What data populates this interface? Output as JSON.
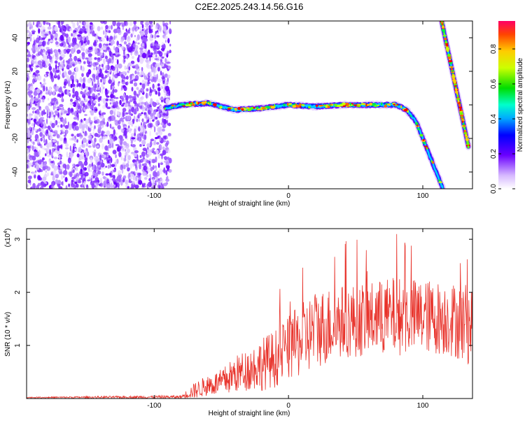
{
  "title": "C2E2.2025.243.14.56.G16",
  "colorbar": {
    "label": "Normalized spectral amplitude",
    "ticks": [
      "0.0",
      "0.2",
      "0.4",
      "0.6",
      "0.8"
    ],
    "tick_values": [
      0.0,
      0.2,
      0.4,
      0.6,
      0.8
    ],
    "range": [
      0,
      0.96
    ]
  },
  "chart_data": [
    {
      "type": "heatmap",
      "title": "C2E2.2025.243.14.56.G16",
      "xlabel": "Height of straight line (km)",
      "ylabel": "Frequency (Hz)",
      "xlim": [
        -195,
        137
      ],
      "ylim": [
        -50,
        50
      ],
      "xticks": [
        -100,
        0,
        100
      ],
      "xtick_labels": [
        "-100",
        "0",
        "100"
      ],
      "yticks": [
        -40,
        -20,
        0,
        20,
        40
      ],
      "ytick_labels": [
        "-40",
        "-20",
        "0",
        "20",
        "40"
      ],
      "noise_region_x": [
        -195,
        -88
      ],
      "main_track": {
        "x": [
          -92,
          -80,
          -60,
          -40,
          -20,
          0,
          20,
          40,
          60,
          80,
          88,
          95,
          100,
          105,
          110,
          115
        ],
        "y": [
          -2,
          0,
          1,
          -3,
          -2,
          0,
          -1,
          0,
          0,
          0,
          -3,
          -10,
          -20,
          -30,
          -40,
          -50
        ]
      },
      "upper_track": {
        "x": [
          114,
          118,
          122,
          126,
          130,
          134
        ],
        "y": [
          50,
          35,
          20,
          5,
          -10,
          -25
        ]
      }
    },
    {
      "type": "line",
      "xlabel": "Height of straight line (km)",
      "ylabel": "SNR (10 * v/v)",
      "y_multiplier": "(x10",
      "y_multiplier_exp": "4",
      "y_multiplier_close": ")",
      "xlim": [
        -195,
        137
      ],
      "ylim": [
        0,
        3.2
      ],
      "xticks": [
        -100,
        0,
        100
      ],
      "xtick_labels": [
        "-100",
        "0",
        "100"
      ],
      "yticks": [
        1,
        2,
        3
      ],
      "ytick_labels": [
        "1",
        "2",
        "3"
      ],
      "series": [
        {
          "name": "SNR",
          "color": "#e8332b",
          "envelope_x": [
            -195,
            -80,
            -70,
            -60,
            -50,
            -40,
            -30,
            -20,
            -10,
            0,
            10,
            20,
            40,
            60,
            80,
            100,
            120,
            137
          ],
          "envelope_mean": [
            0.02,
            0.03,
            0.15,
            0.25,
            0.3,
            0.45,
            0.55,
            0.65,
            0.75,
            0.95,
            1.1,
            1.3,
            1.45,
            1.5,
            1.55,
            1.55,
            1.5,
            1.4
          ],
          "envelope_amp": [
            0.01,
            0.03,
            0.15,
            0.2,
            0.25,
            0.35,
            0.4,
            0.5,
            0.55,
            0.6,
            0.7,
            0.75,
            0.7,
            0.7,
            0.75,
            0.7,
            0.7,
            0.8
          ]
        }
      ]
    }
  ]
}
